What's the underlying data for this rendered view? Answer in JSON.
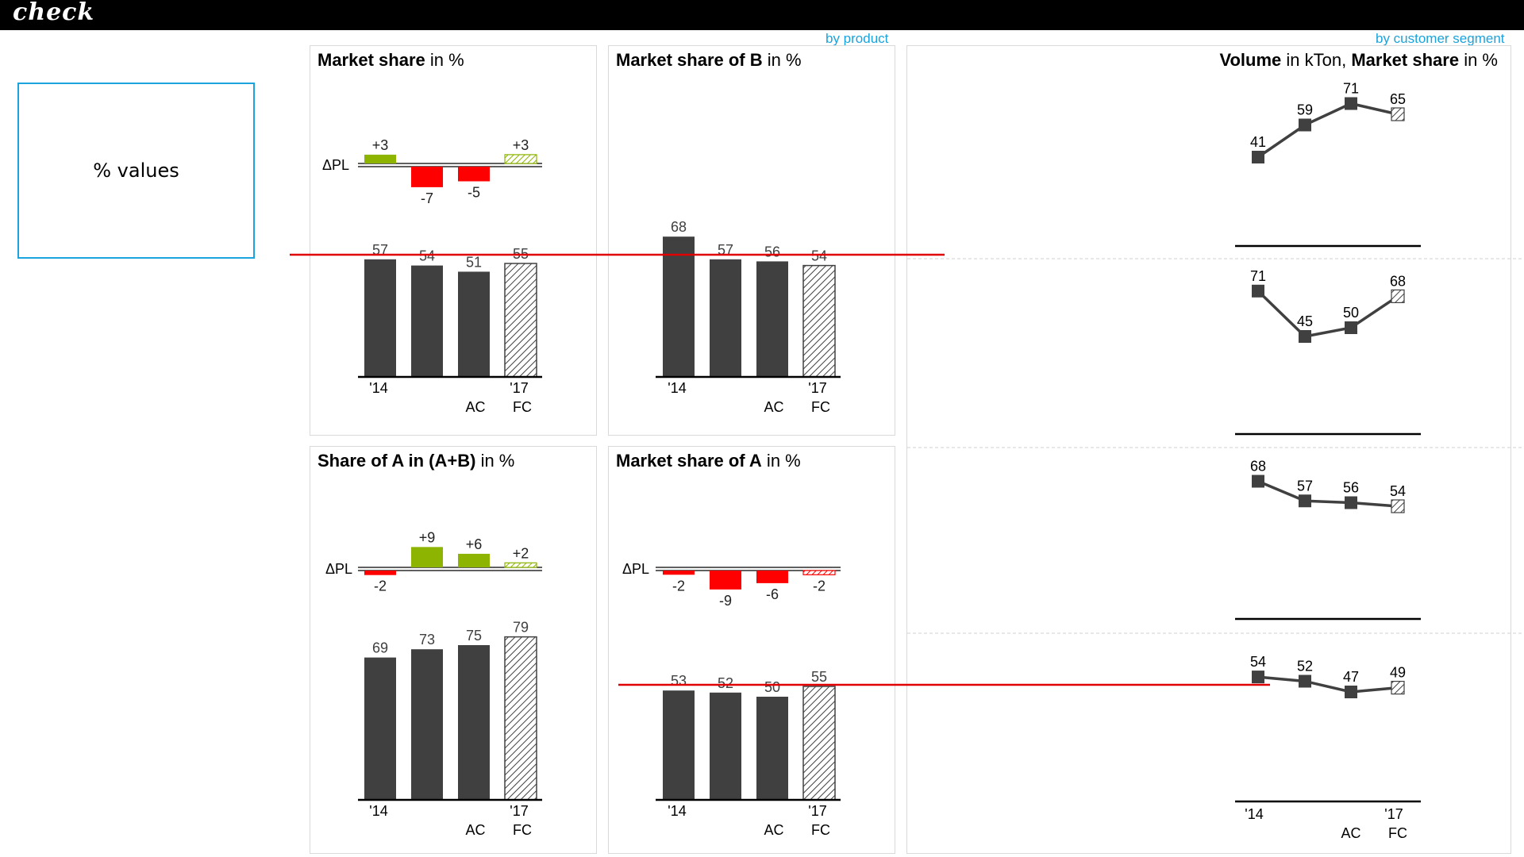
{
  "app": {
    "logo": "check"
  },
  "infobox": {
    "label": "% values"
  },
  "links": {
    "by_product": "by product",
    "by_segment": "by customer segment"
  },
  "colors": {
    "bar": "#404040",
    "positive": "#8cb400",
    "negative": "#ff0000",
    "reference_line": "#e00000",
    "accent": "#1aa3dc"
  },
  "panels": {
    "p1": {
      "title_bold": "Market share",
      "title_unit": " in %"
    },
    "p2": {
      "title_bold": "Market share of B",
      "title_unit": " in %"
    },
    "p3": {
      "title_bold": "Share of A in (A+B)",
      "title_unit": " in %"
    },
    "p4": {
      "title_bold": "Market share of A",
      "title_unit": " in %"
    },
    "p5": {
      "title_bold_1": "Volume",
      "title_unit_1": " in kTon, ",
      "title_bold_2": "Market share",
      "title_unit_2": " in %"
    }
  },
  "chart_data": [
    {
      "type": "bar",
      "title": "Market share in %",
      "categories": [
        "'14",
        "",
        "AC",
        "'17 FC"
      ],
      "axis_labels_top": [
        "'14",
        "",
        "",
        "'17"
      ],
      "axis_labels_bottom": [
        "",
        "",
        "AC",
        "FC"
      ],
      "values": [
        57,
        54,
        51,
        55
      ],
      "delta_label": "ΔPL",
      "delta_values": [
        3,
        -7,
        -5,
        3
      ],
      "delta_labels": [
        "+3",
        "-7",
        "-5",
        "+3"
      ],
      "forecast_index": 3
    },
    {
      "type": "bar",
      "title": "Market share of B in %",
      "categories": [
        "'14",
        "",
        "AC",
        "'17 FC"
      ],
      "axis_labels_top": [
        "'14",
        "",
        "",
        "'17"
      ],
      "axis_labels_bottom": [
        "",
        "",
        "AC",
        "FC"
      ],
      "values": [
        68,
        57,
        56,
        54
      ],
      "forecast_index": 3
    },
    {
      "type": "bar",
      "title": "Share of A in (A+B) in %",
      "categories": [
        "'14",
        "",
        "AC",
        "'17 FC"
      ],
      "axis_labels_top": [
        "'14",
        "",
        "",
        "'17"
      ],
      "axis_labels_bottom": [
        "",
        "",
        "AC",
        "FC"
      ],
      "values": [
        69,
        73,
        75,
        79
      ],
      "delta_label": "ΔPL",
      "delta_values": [
        -2,
        9,
        6,
        2
      ],
      "delta_labels": [
        "-2",
        "+9",
        "+6",
        "+2"
      ],
      "forecast_index": 3
    },
    {
      "type": "bar",
      "title": "Market share of A in %",
      "categories": [
        "'14",
        "",
        "AC",
        "'17 FC"
      ],
      "axis_labels_top": [
        "'14",
        "",
        "",
        "'17"
      ],
      "axis_labels_bottom": [
        "",
        "",
        "AC",
        "FC"
      ],
      "values": [
        53,
        52,
        50,
        55
      ],
      "delta_label": "ΔPL",
      "delta_values": [
        -2,
        -9,
        -6,
        -2
      ],
      "delta_labels": [
        "-2",
        "-9",
        "-6",
        "-2"
      ],
      "forecast_index": 3
    },
    {
      "type": "line",
      "title": "Volume in kTon, Market share in %",
      "categories": [
        "'14",
        "",
        "AC",
        "'17 FC"
      ],
      "axis_labels_top": [
        "'14",
        "",
        "",
        "'17"
      ],
      "axis_labels_bottom": [
        "",
        "",
        "AC",
        "FC"
      ],
      "series": [
        {
          "values": [
            41,
            59,
            71,
            65
          ]
        },
        {
          "values": [
            71,
            45,
            50,
            68
          ]
        },
        {
          "values": [
            68,
            57,
            56,
            54
          ]
        },
        {
          "values": [
            54,
            52,
            47,
            49
          ]
        }
      ],
      "forecast_index": 3
    }
  ]
}
